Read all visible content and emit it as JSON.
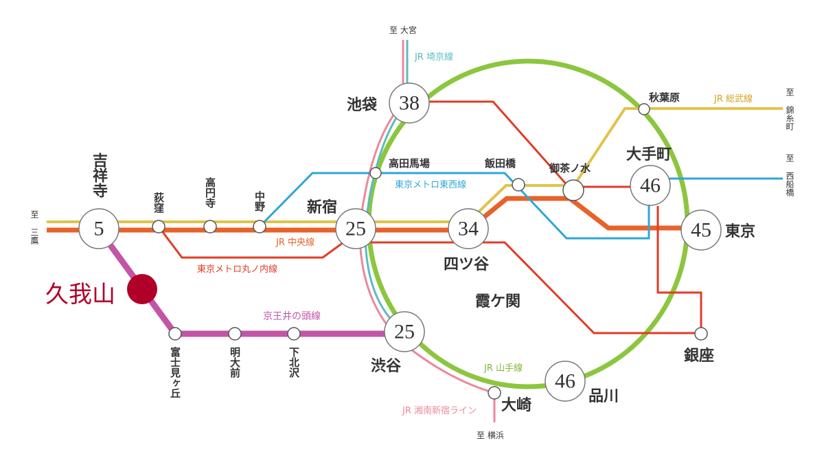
{
  "colors": {
    "yamanote": "#8cc63f",
    "chuo": "#e8622a",
    "sobu": "#e0c34a",
    "marunouchi": "#e23b25",
    "tozai": "#2ea6d6",
    "saikyo": "#5bbcbf",
    "shonan": "#ef869b",
    "keio": "#c255a6",
    "kugayama": "#b0002a"
  },
  "lines": {
    "yamanote": "JR 山手線",
    "chuo": "JR 中央線",
    "sobu": "JR 総武線",
    "marunouchi": "東京メトロ丸ノ内線",
    "tozai": "東京メトロ東西線",
    "saikyo": "JR 埼京線",
    "shonan": "JR 湘南新宿ライン",
    "keio": "京王井の頭線"
  },
  "destinations": {
    "mitaka": "至 三鷹",
    "omiya": "至 大宮",
    "kinshicho": "至 錦糸町",
    "nishifunabashi": "至 西船橋",
    "yokohama": "至 横浜"
  },
  "home": "久我山",
  "center_label": "霞ケ関",
  "stations": {
    "kichijoji": {
      "name": "吉祥寺",
      "minutes": "5"
    },
    "shinjuku": {
      "name": "新宿",
      "minutes": "25"
    },
    "yotsuya": {
      "name": "四ツ谷",
      "minutes": "34"
    },
    "ikebukuro": {
      "name": "池袋",
      "minutes": "38"
    },
    "shibuya": {
      "name": "渋谷",
      "minutes": "25"
    },
    "shinagawa": {
      "name": "品川",
      "minutes": "46"
    },
    "tokyo": {
      "name": "東京",
      "minutes": "45"
    },
    "otemachi": {
      "name": "大手町",
      "minutes": "46"
    },
    "ogikubo": {
      "name": "荻窪"
    },
    "koenji": {
      "name": "高円寺"
    },
    "nakano": {
      "name": "中野"
    },
    "takadanobaba": {
      "name": "高田馬場"
    },
    "iidabashi": {
      "name": "飯田橋"
    },
    "ochanomizu": {
      "name": "御茶ノ水"
    },
    "akihabara": {
      "name": "秋葉原"
    },
    "ginza": {
      "name": "銀座"
    },
    "osaki": {
      "name": "大崎"
    },
    "fujimigaoka": {
      "name": "富士見ヶ丘"
    },
    "meidaimae": {
      "name": "明大前"
    },
    "shimokitazawa": {
      "name": "下北沢"
    }
  }
}
